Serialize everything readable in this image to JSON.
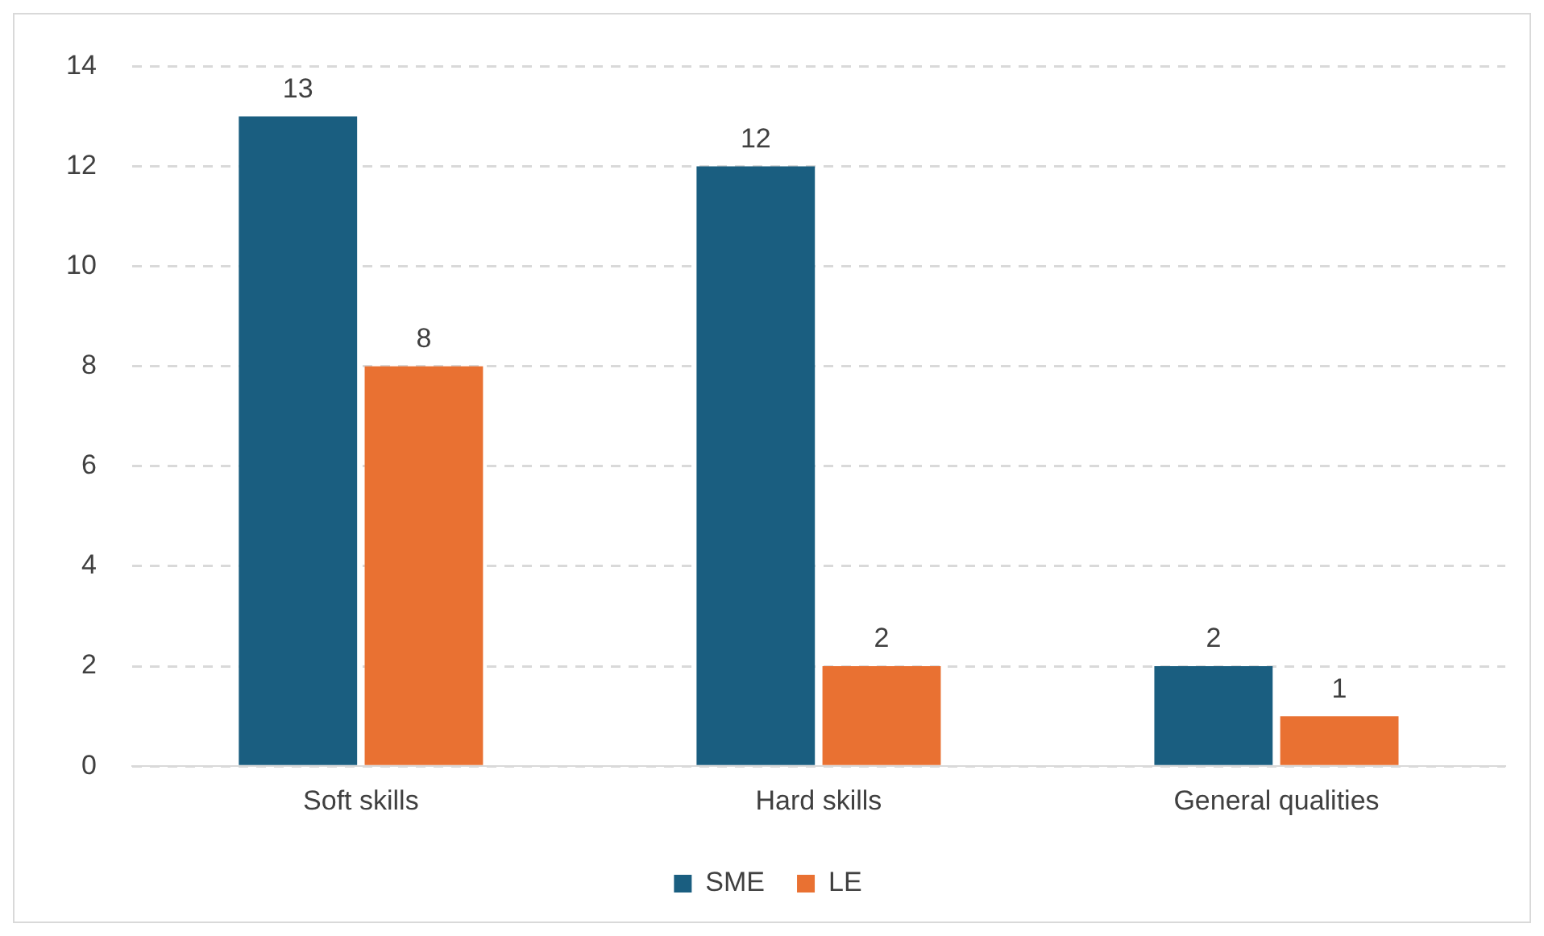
{
  "chart_data": {
    "type": "bar",
    "categories": [
      "Soft skills",
      "Hard skills",
      "General qualities"
    ],
    "series": [
      {
        "name": "SME",
        "color": "#1a5e80",
        "values": [
          13,
          12,
          2
        ]
      },
      {
        "name": "LE",
        "color": "#e97132",
        "values": [
          8,
          2,
          1
        ]
      }
    ],
    "ylim": [
      0,
      14
    ],
    "yticks": [
      0,
      2,
      4,
      6,
      8,
      10,
      12,
      14
    ],
    "grid": "y",
    "legend": "bottom",
    "data_labels": true
  }
}
